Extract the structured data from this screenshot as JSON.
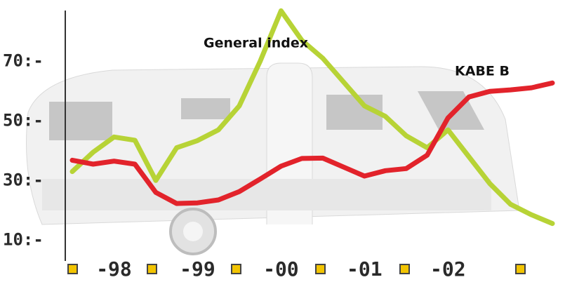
{
  "chart_data": {
    "type": "line",
    "x": [
      1998,
      1998.25,
      1998.5,
      1998.75,
      1999,
      1999.25,
      1999.5,
      1999.75,
      2000,
      2000.25,
      2000.5,
      2000.75,
      2001,
      2001.25,
      2001.5,
      2001.75,
      2002,
      2002.25,
      2002.5,
      2002.75,
      2003,
      2003.25,
      2003.5,
      2003.75
    ],
    "xlim": [
      1998,
      2003.75
    ],
    "xticks": [
      {
        "value": 1998.5,
        "label": "-98"
      },
      {
        "value": 1999.5,
        "label": "-99"
      },
      {
        "value": 2000.5,
        "label": "-00"
      },
      {
        "value": 2001.5,
        "label": "-01"
      },
      {
        "value": 2002.5,
        "label": "-02"
      }
    ],
    "ylim": [
      3.5,
      87
    ],
    "yticks": [
      {
        "value": 10,
        "label": "10:-"
      },
      {
        "value": 30,
        "label": "30:-"
      },
      {
        "value": 50,
        "label": "50:-"
      },
      {
        "value": 70,
        "label": "70:-"
      }
    ],
    "series": [
      {
        "name": "General index",
        "color": "#b7d336",
        "values": [
          33,
          39.5,
          44.6,
          43.5,
          30,
          41,
          43.4,
          47,
          55,
          70,
          86.9,
          77,
          71,
          63,
          55,
          51.5,
          45,
          41,
          47,
          38,
          29,
          22,
          18.5,
          15.6
        ]
      },
      {
        "name": "KABE B",
        "color": "#e2232b",
        "values": [
          36.8,
          35.5,
          36.5,
          35.5,
          26,
          22.3,
          22.5,
          23.5,
          26.3,
          30.5,
          34.8,
          37.4,
          37.5,
          34.5,
          31.5,
          33.3,
          34,
          38.5,
          51,
          58,
          59.9,
          60.4,
          61.1,
          62.7
        ]
      }
    ]
  }
}
